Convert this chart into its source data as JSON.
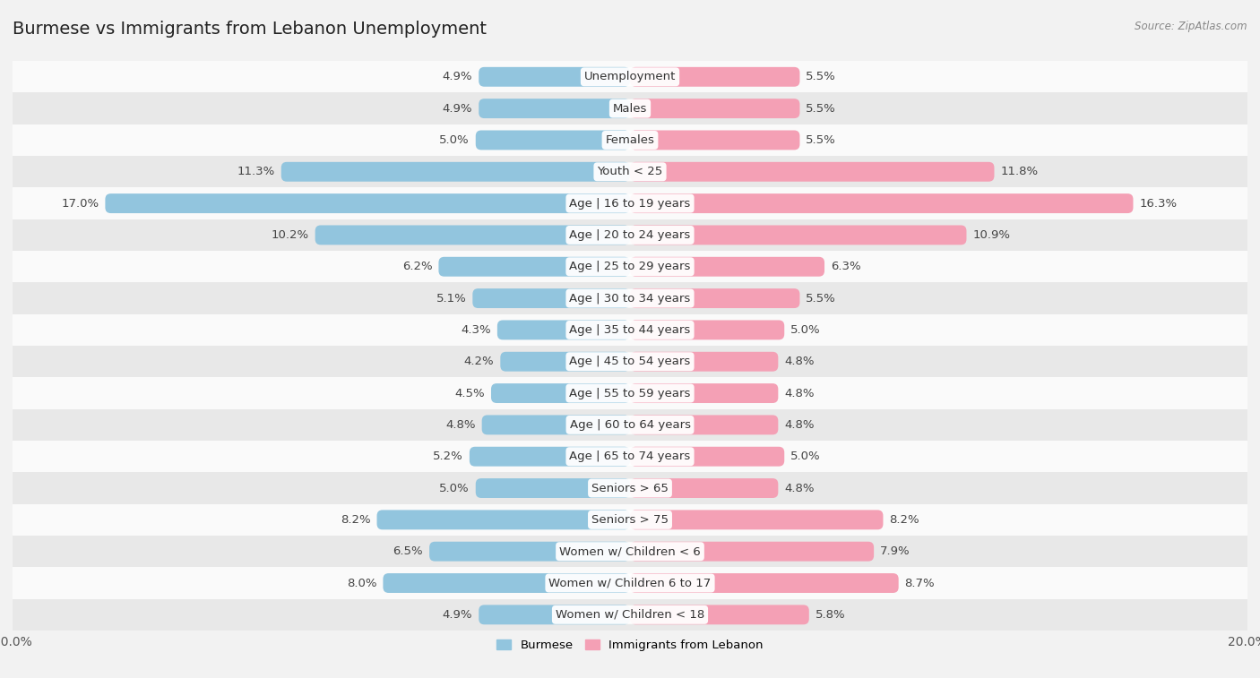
{
  "title": "Burmese vs Immigrants from Lebanon Unemployment",
  "source": "Source: ZipAtlas.com",
  "categories": [
    "Unemployment",
    "Males",
    "Females",
    "Youth < 25",
    "Age | 16 to 19 years",
    "Age | 20 to 24 years",
    "Age | 25 to 29 years",
    "Age | 30 to 34 years",
    "Age | 35 to 44 years",
    "Age | 45 to 54 years",
    "Age | 55 to 59 years",
    "Age | 60 to 64 years",
    "Age | 65 to 74 years",
    "Seniors > 65",
    "Seniors > 75",
    "Women w/ Children < 6",
    "Women w/ Children 6 to 17",
    "Women w/ Children < 18"
  ],
  "burmese": [
    4.9,
    4.9,
    5.0,
    11.3,
    17.0,
    10.2,
    6.2,
    5.1,
    4.3,
    4.2,
    4.5,
    4.8,
    5.2,
    5.0,
    8.2,
    6.5,
    8.0,
    4.9
  ],
  "lebanon": [
    5.5,
    5.5,
    5.5,
    11.8,
    16.3,
    10.9,
    6.3,
    5.5,
    5.0,
    4.8,
    4.8,
    4.8,
    5.0,
    4.8,
    8.2,
    7.9,
    8.7,
    5.8
  ],
  "burmese_color": "#92c5de",
  "lebanon_color": "#f4a0b5",
  "bg_color": "#f2f2f2",
  "row_color_light": "#fafafa",
  "row_color_dark": "#e8e8e8",
  "max_val": 20.0,
  "legend_burmese": "Burmese",
  "legend_lebanon": "Immigrants from Lebanon",
  "title_fontsize": 14,
  "label_fontsize": 9.5,
  "tick_fontsize": 10
}
